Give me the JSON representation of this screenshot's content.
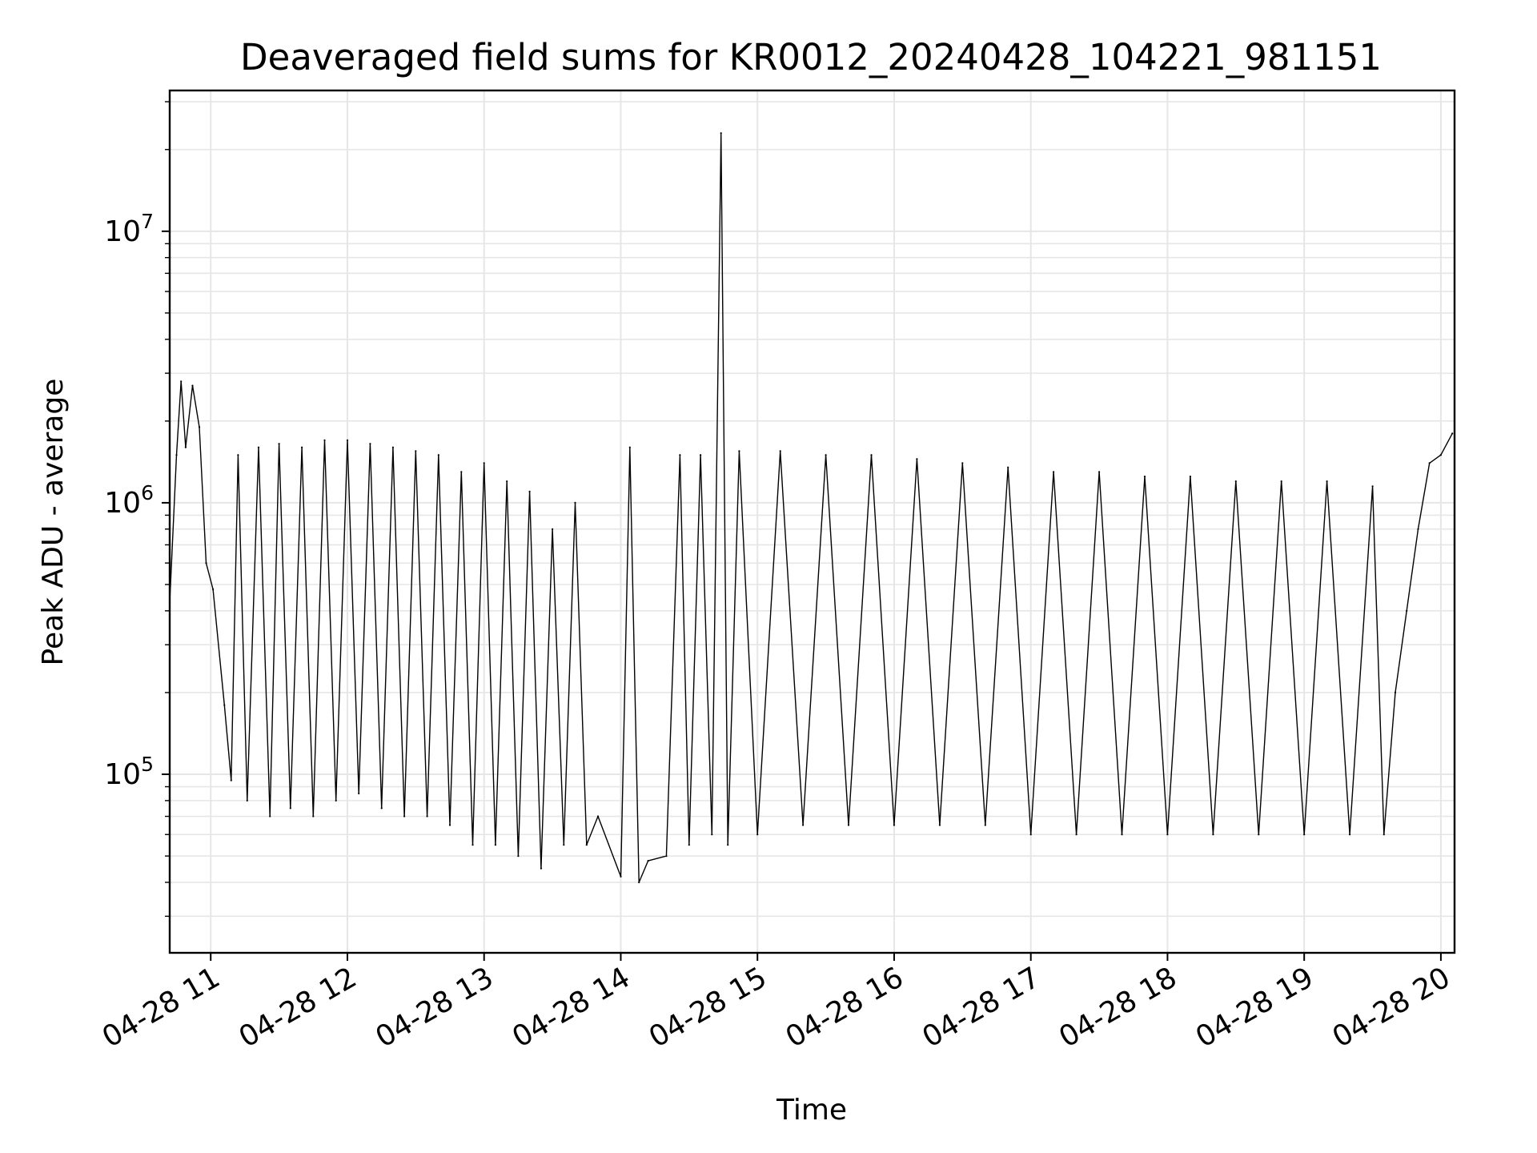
{
  "chart_data": {
    "type": "line",
    "title": "Deaveraged field sums for KR0012_20240428_104221_981151",
    "xlabel": "Time",
    "ylabel": "Peak ADU - average",
    "yscale": "log",
    "grid": true,
    "line_color": "#000000",
    "xlim": [
      "04-28 10:42",
      "04-28 20:06"
    ],
    "ylim": [
      22000,
      33000000
    ],
    "xticks": [
      "04-28 11",
      "04-28 12",
      "04-28 13",
      "04-28 14",
      "04-28 15",
      "04-28 16",
      "04-28 17",
      "04-28 18",
      "04-28 19",
      "04-28 20"
    ],
    "yticks": [
      {
        "base": "10",
        "exp": "5",
        "value": 100000
      },
      {
        "base": "10",
        "exp": "6",
        "value": 1000000
      },
      {
        "base": "10",
        "exp": "7",
        "value": 10000000
      }
    ],
    "x": [
      "04-28 10:42",
      "04-28 10:45",
      "04-28 10:47",
      "04-28 10:49",
      "04-28 10:52",
      "04-28 10:55",
      "04-28 10:58",
      "04-28 11:01",
      "04-28 11:06",
      "04-28 11:09",
      "04-28 11:12",
      "04-28 11:16",
      "04-28 11:21",
      "04-28 11:26",
      "04-28 11:30",
      "04-28 11:35",
      "04-28 11:40",
      "04-28 11:45",
      "04-28 11:50",
      "04-28 11:55",
      "04-28 12:00",
      "04-28 12:05",
      "04-28 12:10",
      "04-28 12:15",
      "04-28 12:20",
      "04-28 12:25",
      "04-28 12:30",
      "04-28 12:35",
      "04-28 12:40",
      "04-28 12:45",
      "04-28 12:50",
      "04-28 12:55",
      "04-28 13:00",
      "04-28 13:05",
      "04-28 13:10",
      "04-28 13:15",
      "04-28 13:20",
      "04-28 13:25",
      "04-28 13:30",
      "04-28 13:35",
      "04-28 13:40",
      "04-28 13:45",
      "04-28 13:50",
      "04-28 14:00",
      "04-28 14:04",
      "04-28 14:08",
      "04-28 14:12",
      "04-28 14:20",
      "04-28 14:26",
      "04-28 14:30",
      "04-28 14:35",
      "04-28 14:40",
      "04-28 14:44",
      "04-28 14:47",
      "04-28 14:52",
      "04-28 15:00",
      "04-28 15:10",
      "04-28 15:20",
      "04-28 15:30",
      "04-28 15:40",
      "04-28 15:50",
      "04-28 16:00",
      "04-28 16:10",
      "04-28 16:20",
      "04-28 16:30",
      "04-28 16:40",
      "04-28 16:50",
      "04-28 17:00",
      "04-28 17:10",
      "04-28 17:20",
      "04-28 17:30",
      "04-28 17:40",
      "04-28 17:50",
      "04-28 18:00",
      "04-28 18:10",
      "04-28 18:20",
      "04-28 18:30",
      "04-28 18:40",
      "04-28 18:50",
      "04-28 19:00",
      "04-28 19:10",
      "04-28 19:20",
      "04-28 19:30",
      "04-28 19:35",
      "04-28 19:40",
      "04-28 19:45",
      "04-28 19:50",
      "04-28 19:55",
      "04-28 20:00",
      "04-28 20:05"
    ],
    "y": [
      430000,
      1500000,
      2800000,
      1600000,
      2700000,
      1900000,
      600000,
      480000,
      180000,
      95000,
      1500000,
      80000,
      1600000,
      70000,
      1650000,
      75000,
      1600000,
      70000,
      1700000,
      80000,
      1700000,
      85000,
      1650000,
      75000,
      1600000,
      70000,
      1550000,
      70000,
      1500000,
      65000,
      1300000,
      55000,
      1400000,
      55000,
      1200000,
      50000,
      1100000,
      45000,
      800000,
      55000,
      1000000,
      55000,
      70000,
      42000,
      1600000,
      40000,
      48000,
      50000,
      1500000,
      55000,
      1500000,
      60000,
      23000000,
      55000,
      1550000,
      60000,
      1550000,
      65000,
      1500000,
      65000,
      1500000,
      65000,
      1450000,
      65000,
      1400000,
      65000,
      1350000,
      60000,
      1300000,
      60000,
      1300000,
      60000,
      1250000,
      60000,
      1250000,
      60000,
      1200000,
      60000,
      1200000,
      60000,
      1200000,
      60000,
      1150000,
      60000,
      200000,
      400000,
      800000,
      1400000,
      1500000,
      1800000
    ]
  }
}
